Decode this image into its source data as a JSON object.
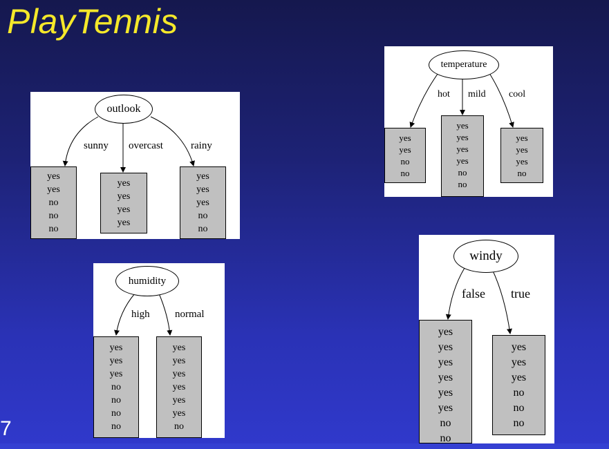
{
  "slide": {
    "title": "PlayTennis",
    "page_number": "7"
  },
  "trees": {
    "outlook": {
      "root": "outlook",
      "branches": [
        {
          "label": "sunny",
          "values": [
            "yes",
            "yes",
            "no",
            "no",
            "no"
          ]
        },
        {
          "label": "overcast",
          "values": [
            "yes",
            "yes",
            "yes",
            "yes"
          ]
        },
        {
          "label": "rainy",
          "values": [
            "yes",
            "yes",
            "yes",
            "no",
            "no"
          ]
        }
      ]
    },
    "temperature": {
      "root": "temperature",
      "branches": [
        {
          "label": "hot",
          "values": [
            "yes",
            "yes",
            "no",
            "no"
          ]
        },
        {
          "label": "mild",
          "values": [
            "yes",
            "yes",
            "yes",
            "yes",
            "no",
            "no"
          ]
        },
        {
          "label": "cool",
          "values": [
            "yes",
            "yes",
            "yes",
            "no"
          ]
        }
      ]
    },
    "humidity": {
      "root": "humidity",
      "branches": [
        {
          "label": "high",
          "values": [
            "yes",
            "yes",
            "yes",
            "no",
            "no",
            "no",
            "no"
          ]
        },
        {
          "label": "normal",
          "values": [
            "yes",
            "yes",
            "yes",
            "yes",
            "yes",
            "yes",
            "no"
          ]
        }
      ]
    },
    "windy": {
      "root": "windy",
      "branches": [
        {
          "label": "false",
          "values": [
            "yes",
            "yes",
            "yes",
            "yes",
            "yes",
            "yes",
            "no",
            "no"
          ]
        },
        {
          "label": "true",
          "values": [
            "yes",
            "yes",
            "yes",
            "no",
            "no",
            "no"
          ]
        }
      ]
    }
  }
}
